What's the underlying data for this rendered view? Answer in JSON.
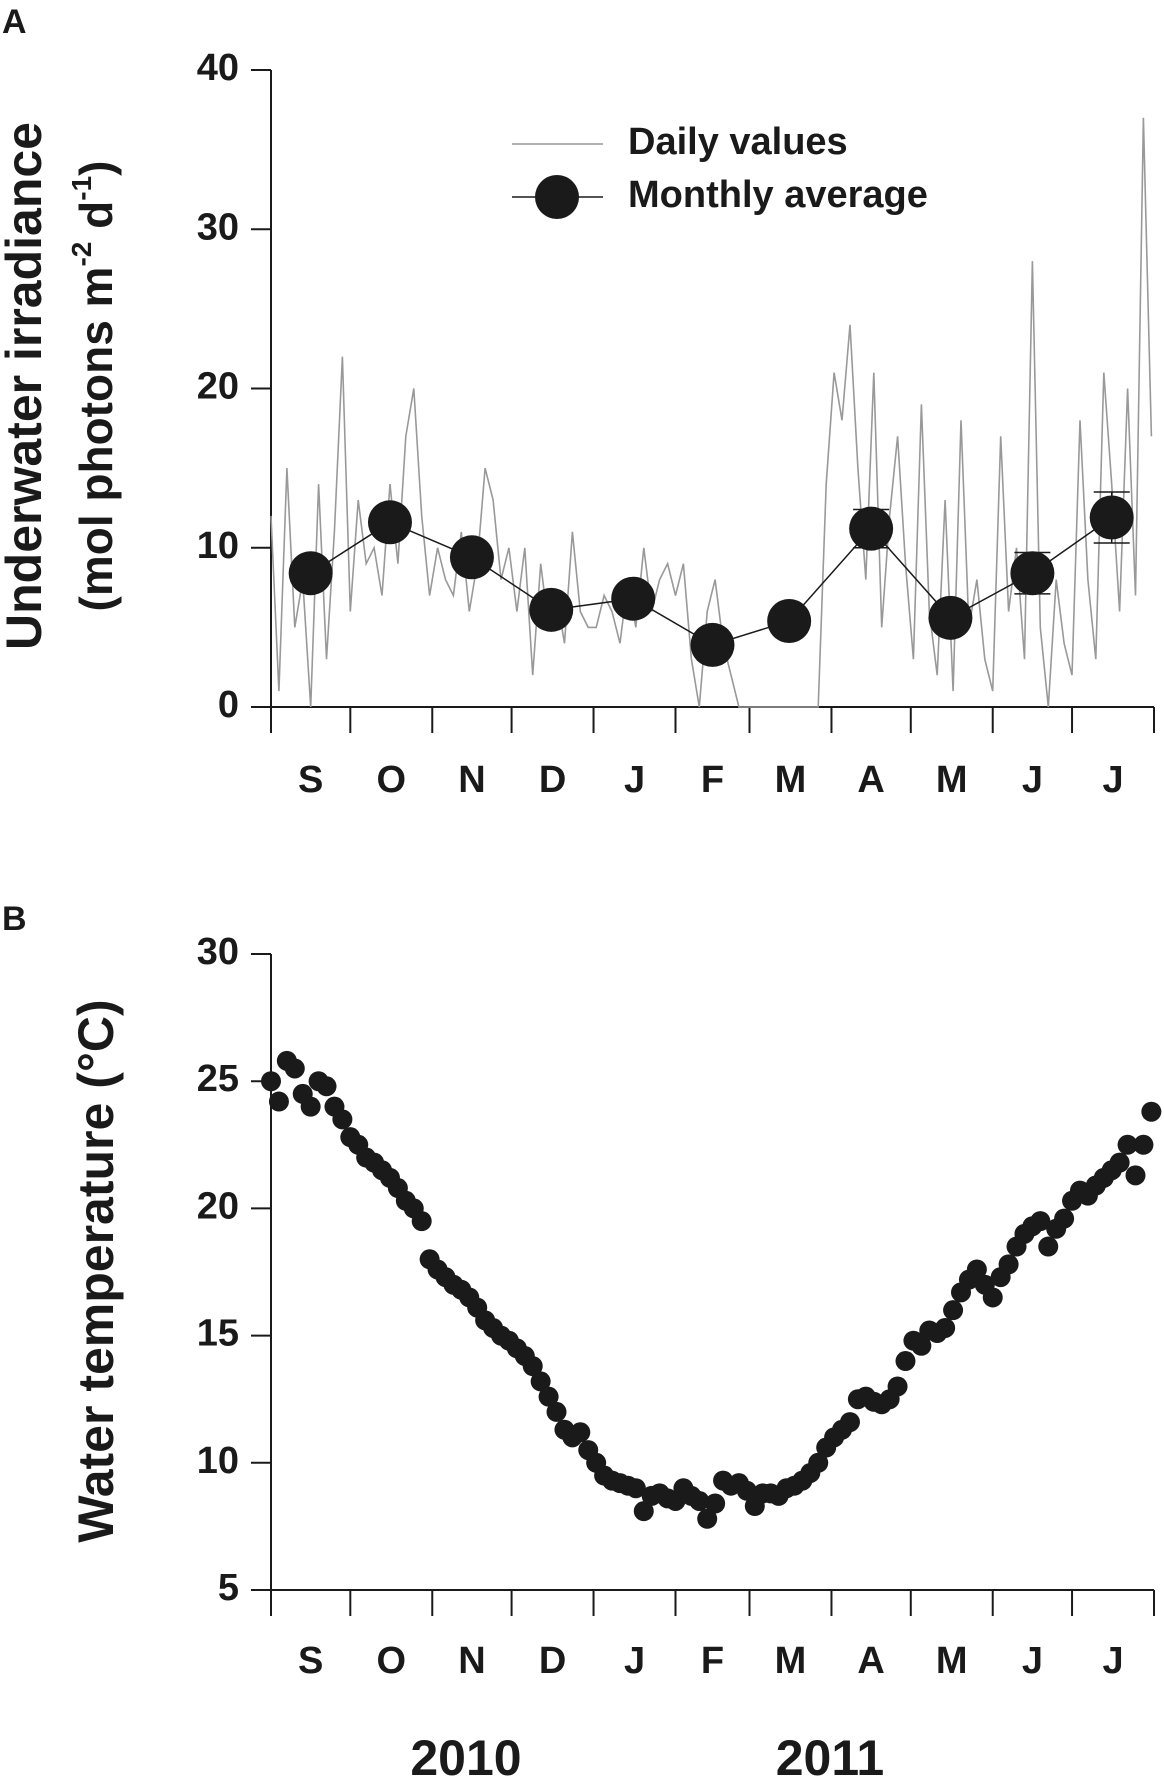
{
  "chart_data": [
    {
      "type": "line",
      "panel": "A",
      "ylabel": {
        "line1": "Underwater irradiance",
        "line2": [
          "(mol photons m",
          "-2",
          " d",
          "-1",
          ")"
        ]
      },
      "categories": [
        "S",
        "O",
        "N",
        "D",
        "J",
        "F",
        "M",
        "A",
        "M",
        "J",
        "J"
      ],
      "xlim": [
        0,
        334
      ],
      "xticks": [
        0,
        30,
        61,
        91,
        122,
        153,
        181,
        212,
        242,
        273,
        303,
        334
      ],
      "ylim": [
        0,
        40
      ],
      "yticks": [
        0,
        10,
        20,
        30,
        40
      ],
      "series": [
        {
          "name": "Daily values",
          "color": "#999999",
          "x": [
            0,
            3,
            6,
            9,
            12,
            15,
            18,
            21,
            24,
            27,
            30,
            33,
            36,
            39,
            42,
            45,
            48,
            51,
            54,
            57,
            60,
            63,
            66,
            69,
            72,
            75,
            78,
            81,
            84,
            87,
            90,
            93,
            96,
            99,
            102,
            105,
            108,
            111,
            114,
            117,
            120,
            123,
            126,
            129,
            132,
            135,
            138,
            141,
            144,
            147,
            150,
            153,
            156,
            159,
            162,
            165,
            168,
            171,
            174,
            177,
            180,
            183,
            186,
            189,
            192,
            195,
            198,
            201,
            204,
            207,
            210,
            213,
            216,
            219,
            222,
            225,
            228,
            231,
            234,
            237,
            240,
            243,
            246,
            249,
            252,
            255,
            258,
            261,
            264,
            267,
            270,
            273,
            276,
            279,
            282,
            285,
            288,
            291,
            294,
            297,
            300,
            303,
            306,
            309,
            312,
            315,
            318,
            321,
            324,
            327,
            330,
            333
          ],
          "values": [
            12,
            1,
            15,
            5,
            8,
            0,
            14,
            3,
            11,
            22,
            6,
            13,
            9,
            10,
            7,
            14,
            9,
            17,
            20,
            12,
            7,
            10,
            8,
            7,
            11,
            6,
            9,
            15,
            13,
            8,
            10,
            6,
            10,
            2,
            9,
            5,
            7,
            4,
            11,
            6,
            5,
            5,
            7,
            6,
            4,
            8,
            5,
            10,
            6,
            8,
            9,
            7,
            9,
            3,
            0,
            6,
            8,
            4,
            2,
            0,
            0,
            0,
            0,
            0,
            0,
            0,
            0,
            0,
            0,
            0,
            14,
            21,
            18,
            24,
            15,
            8,
            21,
            5,
            12,
            17,
            9,
            3,
            19,
            6,
            2,
            13,
            1,
            18,
            5,
            8,
            3,
            1,
            17,
            6,
            10,
            3,
            28,
            5,
            0,
            8,
            4,
            2,
            18,
            8,
            3,
            21,
            14,
            6,
            20,
            7,
            37,
            17
          ]
        },
        {
          "name": "Monthly average",
          "color": "#1a1a1a",
          "marker": true,
          "x": [
            15,
            45,
            76,
            106,
            137,
            167,
            196,
            227,
            257,
            288,
            318
          ],
          "values": [
            8.4,
            11.6,
            9.4,
            6.1,
            6.8,
            3.9,
            5.4,
            11.2,
            5.6,
            8.4,
            11.9
          ],
          "errors": [
            0.3,
            0.5,
            0.4,
            0.3,
            0.3,
            0.5,
            0.3,
            1.2,
            0.6,
            1.3,
            1.6
          ]
        }
      ]
    },
    {
      "type": "scatter",
      "panel": "B",
      "ylabel": "Water temperature (°C)",
      "categories": [
        "S",
        "O",
        "N",
        "D",
        "J",
        "F",
        "M",
        "A",
        "M",
        "J",
        "J"
      ],
      "year_labels": [
        "2010",
        "2011"
      ],
      "xlim": [
        0,
        334
      ],
      "xticks": [
        0,
        30,
        61,
        91,
        122,
        153,
        181,
        212,
        242,
        273,
        303,
        334
      ],
      "ylim": [
        5,
        30
      ],
      "yticks": [
        5,
        10,
        15,
        20,
        25,
        30
      ],
      "series": [
        {
          "color": "#1a1a1a",
          "x": [
            0,
            3,
            6,
            9,
            12,
            15,
            18,
            21,
            24,
            27,
            30,
            33,
            36,
            39,
            42,
            45,
            48,
            51,
            54,
            57,
            60,
            63,
            66,
            69,
            72,
            75,
            78,
            81,
            84,
            87,
            90,
            93,
            96,
            99,
            102,
            105,
            108,
            111,
            114,
            117,
            120,
            123,
            126,
            129,
            132,
            135,
            138,
            141,
            144,
            147,
            150,
            153,
            156,
            159,
            162,
            165,
            168,
            171,
            174,
            177,
            180,
            183,
            186,
            189,
            192,
            195,
            198,
            201,
            204,
            207,
            210,
            213,
            216,
            219,
            222,
            225,
            228,
            231,
            234,
            237,
            240,
            243,
            246,
            249,
            252,
            255,
            258,
            261,
            264,
            267,
            270,
            273,
            276,
            279,
            282,
            285,
            288,
            291,
            294,
            297,
            300,
            303,
            306,
            309,
            312,
            315,
            318,
            321,
            324,
            327,
            330,
            333
          ],
          "values": [
            25,
            24.2,
            25.8,
            25.5,
            24.5,
            24,
            25,
            24.8,
            24,
            23.5,
            22.8,
            22.5,
            22,
            21.8,
            21.5,
            21.2,
            20.8,
            20.3,
            20,
            19.5,
            18,
            17.6,
            17.3,
            17,
            16.8,
            16.5,
            16.1,
            15.6,
            15.3,
            15,
            14.8,
            14.5,
            14.2,
            13.8,
            13.2,
            12.6,
            12,
            11.3,
            11,
            11.2,
            10.5,
            10,
            9.5,
            9.3,
            9.2,
            9.1,
            9,
            8.1,
            8.7,
            8.8,
            8.6,
            8.5,
            9,
            8.7,
            8.5,
            7.8,
            8.4,
            9.3,
            9.1,
            9.2,
            8.9,
            8.3,
            8.8,
            8.8,
            8.7,
            9,
            9.1,
            9.3,
            9.6,
            10,
            10.6,
            11,
            11.3,
            11.6,
            12.5,
            12.6,
            12.4,
            12.3,
            12.5,
            13,
            14,
            14.8,
            14.6,
            15.2,
            15.1,
            15.3,
            16,
            16.7,
            17.2,
            17.6,
            17,
            16.5,
            17.3,
            17.8,
            18.5,
            19,
            19.3,
            19.5,
            18.5,
            19.2,
            19.6,
            20.3,
            20.7,
            20.5,
            20.9,
            21.2,
            21.5,
            21.8,
            22.5,
            21.3,
            22.5,
            23.8
          ]
        }
      ]
    }
  ]
}
